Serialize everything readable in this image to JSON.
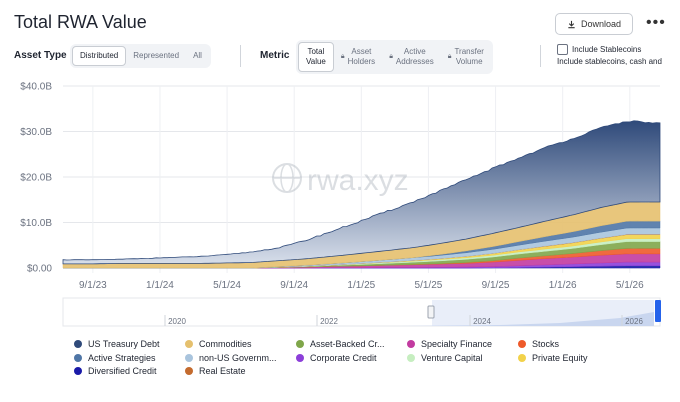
{
  "header": {
    "title": "Total RWA Value",
    "download_label": "Download",
    "more_icon": "more-icon"
  },
  "controls": {
    "asset_type_label": "Asset Type",
    "asset_type_options": [
      "Distributed",
      "Represented",
      "All"
    ],
    "metric_label": "Metric",
    "metric_options": [
      {
        "line1": "Total",
        "line2": "Value"
      },
      {
        "line1": "Asset",
        "line2": "Holders"
      },
      {
        "line1": "Active",
        "line2": "Addresses"
      },
      {
        "line1": "Transfer",
        "line2": "Volume"
      }
    ],
    "include_stablecoins_label": "Include Stablecoins",
    "include_stablecoins_sub": "Include stablecoins, cash and"
  },
  "watermark": "rwa.xyz",
  "chart_data": {
    "type": "area",
    "stacked": true,
    "ylabels": [
      "$0.00",
      "$10.0B",
      "$20.0B",
      "$30.0B",
      "$40.0B"
    ],
    "ylim": [
      0,
      40
    ],
    "xlabels": [
      "9/1/23",
      "1/1/24",
      "5/1/24",
      "9/1/24",
      "1/1/25",
      "5/1/25",
      "9/1/25",
      "1/1/26",
      "5/1/26"
    ],
    "navigator_labels": [
      "2020",
      "2022",
      "2024",
      "2026"
    ],
    "colors": {
      "US Treasury Debt": "#2f4a7a",
      "Active Strategies": "#4f76a6",
      "Diversified Credit": "#1a1aa8",
      "Commodities": "#e5c06e",
      "non-US Government Debt": "#a9c4dd",
      "Real Estate": "#c46b2e",
      "Asset-Backed Credit": "#7fa64a",
      "Corporate Credit": "#8c3fd9",
      "Specialty Finance": "#c23ba0",
      "Venture Capital": "#c6eec0",
      "Stocks": "#ee5a2a",
      "Private Equity": "#f2d24a"
    },
    "x": [
      0,
      0.045,
      0.09,
      0.135,
      0.18,
      0.225,
      0.27,
      0.315,
      0.36,
      0.405,
      0.45,
      0.495,
      0.54,
      0.585,
      0.63,
      0.675,
      0.72,
      0.765,
      0.81,
      0.855,
      0.9,
      0.945,
      1.0
    ],
    "series": [
      {
        "name": "Diversified Credit",
        "values": [
          0,
          0,
          0,
          0,
          0,
          0,
          0,
          0,
          0,
          0,
          0,
          0,
          0,
          0,
          0,
          0,
          0.05,
          0.1,
          0.2,
          0.3,
          0.4,
          0.5,
          0.5
        ]
      },
      {
        "name": "Corporate Credit",
        "values": [
          0,
          0,
          0,
          0,
          0,
          0,
          0,
          0,
          0,
          0,
          0.05,
          0.05,
          0.1,
          0.1,
          0.15,
          0.2,
          0.25,
          0.4,
          0.5,
          0.6,
          0.7,
          0.8,
          0.8
        ]
      },
      {
        "name": "Specialty Finance",
        "values": [
          0,
          0,
          0,
          0,
          0,
          0,
          0,
          0,
          0.1,
          0.2,
          0.3,
          0.4,
          0.5,
          0.6,
          0.7,
          0.8,
          1.0,
          1.2,
          1.4,
          1.5,
          1.7,
          1.8,
          1.8
        ]
      },
      {
        "name": "Stocks",
        "values": [
          0,
          0,
          0,
          0,
          0,
          0,
          0,
          0,
          0,
          0,
          0,
          0,
          0,
          0.05,
          0.1,
          0.2,
          0.3,
          0.5,
          0.6,
          0.8,
          1.0,
          1.2,
          1.2
        ]
      },
      {
        "name": "Asset-Backed Credit",
        "values": [
          0,
          0,
          0,
          0,
          0,
          0,
          0,
          0,
          0.05,
          0.1,
          0.2,
          0.3,
          0.4,
          0.5,
          0.6,
          0.7,
          0.8,
          0.9,
          1.0,
          1.1,
          1.3,
          1.5,
          1.5
        ]
      },
      {
        "name": "Venture Capital",
        "values": [
          0,
          0,
          0,
          0,
          0,
          0,
          0,
          0,
          0.05,
          0.1,
          0.1,
          0.15,
          0.2,
          0.25,
          0.3,
          0.35,
          0.4,
          0.45,
          0.5,
          0.55,
          0.6,
          0.65,
          0.65
        ]
      },
      {
        "name": "Private Equity",
        "values": [
          0,
          0,
          0,
          0,
          0,
          0,
          0,
          0,
          0,
          0,
          0,
          0.05,
          0.1,
          0.15,
          0.2,
          0.3,
          0.4,
          0.5,
          0.6,
          0.7,
          0.8,
          0.9,
          0.9
        ]
      },
      {
        "name": "Real Estate",
        "values": [
          0,
          0,
          0,
          0,
          0,
          0,
          0,
          0,
          0,
          0,
          0,
          0,
          0,
          0,
          0,
          0,
          0,
          0,
          0.05,
          0.05,
          0.05,
          0.05,
          0.05
        ]
      },
      {
        "name": "non-US Government Debt",
        "values": [
          0,
          0,
          0,
          0,
          0,
          0,
          0,
          0,
          0.1,
          0.2,
          0.3,
          0.4,
          0.5,
          0.6,
          0.7,
          0.8,
          0.9,
          1.0,
          1.1,
          1.2,
          1.3,
          1.4,
          1.4
        ]
      },
      {
        "name": "Active Strategies",
        "values": [
          0,
          0,
          0,
          0,
          0,
          0,
          0,
          0,
          0,
          0,
          0,
          0,
          0,
          0,
          0.2,
          0.4,
          0.6,
          0.8,
          1.0,
          1.2,
          1.4,
          1.5,
          1.5
        ]
      },
      {
        "name": "Commodities",
        "values": [
          0.9,
          0.9,
          1.0,
          1.0,
          1.0,
          1.0,
          1.1,
          1.2,
          1.3,
          1.4,
          1.6,
          1.8,
          2.0,
          2.2,
          2.4,
          2.6,
          2.9,
          3.1,
          3.4,
          3.7,
          4.0,
          4.2,
          4.2
        ]
      },
      {
        "name": "US Treasury Debt",
        "values": [
          0.9,
          0.9,
          0.9,
          1.1,
          1.3,
          1.5,
          1.8,
          2.3,
          2.8,
          4.0,
          5.5,
          7.0,
          8.5,
          10.0,
          11.5,
          13.0,
          14.3,
          15.3,
          16.2,
          16.8,
          17.5,
          17.8,
          17.3
        ]
      }
    ]
  },
  "legend": [
    {
      "label": "US Treasury Debt",
      "color": "#2f4a7a"
    },
    {
      "label": "Commodities",
      "color": "#e5c06e"
    },
    {
      "label": "Asset-Backed Cr...",
      "color": "#7fa64a"
    },
    {
      "label": "Specialty Finance",
      "color": "#c23ba0"
    },
    {
      "label": "Stocks",
      "color": "#ee5a2a"
    },
    {
      "label": "Active Strategies",
      "color": "#4f76a6"
    },
    {
      "label": "non-US Governm...",
      "color": "#a9c4dd"
    },
    {
      "label": "Corporate Credit",
      "color": "#8c3fd9"
    },
    {
      "label": "Venture Capital",
      "color": "#c6eec0"
    },
    {
      "label": "Private Equity",
      "color": "#f2d24a"
    },
    {
      "label": "Diversified Credit",
      "color": "#1a1aa8"
    },
    {
      "label": "Real Estate",
      "color": "#c46b2e"
    }
  ]
}
